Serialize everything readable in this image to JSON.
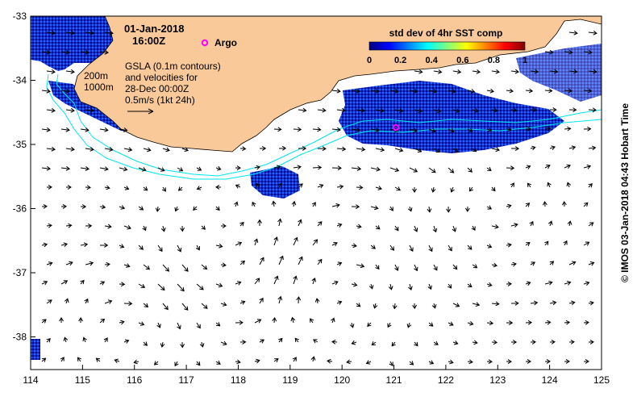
{
  "header": {
    "date": "01-Jan-2018",
    "time": "16:00Z",
    "argo_label": "Argo"
  },
  "isobaths": {
    "shallow": "200m",
    "deep": "1000m"
  },
  "gsla_note": {
    "line1": "GSLA (0.1m contours)",
    "line2": "and velocities for",
    "line3": "28-Dec 00:00Z",
    "line4": "0.5m/s (1kt 24h)"
  },
  "colorbar": {
    "title": "std dev of 4hr SST comp",
    "ticks": [
      "0",
      "0.2",
      "0.4",
      "0.6",
      "0.8",
      "1"
    ],
    "colors": [
      "#00007f",
      "#0000ff",
      "#0080ff",
      "#00ffff",
      "#80ff80",
      "#ffff00",
      "#ff8000",
      "#ff0000",
      "#7f0000"
    ]
  },
  "axes": {
    "x_ticks": [
      "114",
      "115",
      "116",
      "117",
      "118",
      "119",
      "120",
      "121",
      "122",
      "123",
      "124",
      "125"
    ],
    "y_ticks": [
      "-33",
      "-34",
      "-35",
      "-36",
      "-37",
      "-38"
    ]
  },
  "credit": "© IMOS 03-Jan-2018 04:43 Hobart Time",
  "colors": {
    "land": "#f9c99a",
    "isobath": "#00e5ee",
    "argo": "#ff00ff",
    "sst_dense": "#1a1acc"
  }
}
